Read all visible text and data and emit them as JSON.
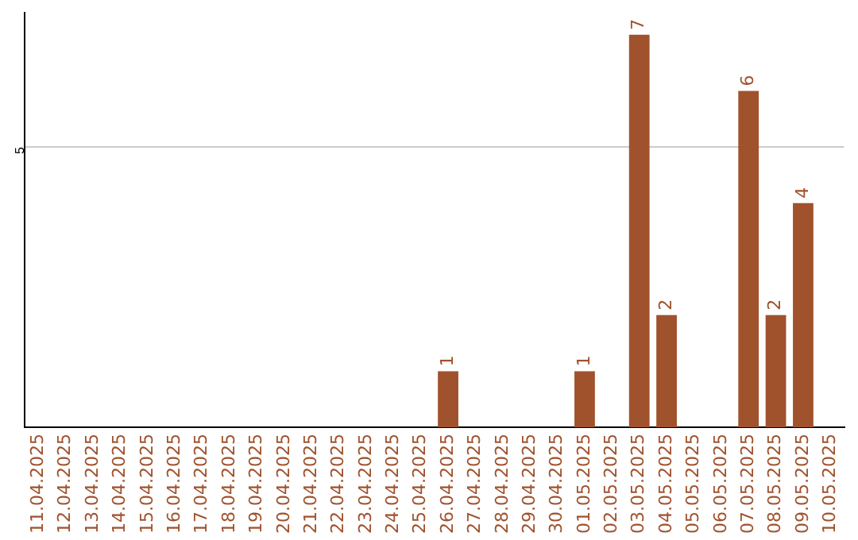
{
  "chart_data": {
    "type": "bar",
    "categories": [
      "11.04.2025",
      "12.04.2025",
      "13.04.2025",
      "14.04.2025",
      "15.04.2025",
      "16.04.2025",
      "17.04.2025",
      "18.04.2025",
      "19.04.2025",
      "20.04.2025",
      "21.04.2025",
      "22.04.2025",
      "23.04.2025",
      "24.04.2025",
      "25.04.2025",
      "26.04.2025",
      "27.04.2025",
      "28.04.2025",
      "29.04.2025",
      "30.04.2025",
      "01.05.2025",
      "02.05.2025",
      "03.05.2025",
      "04.05.2025",
      "05.05.2025",
      "06.05.2025",
      "07.05.2025",
      "08.05.2025",
      "09.05.2025",
      "10.05.2025"
    ],
    "values": [
      null,
      null,
      null,
      null,
      null,
      null,
      null,
      null,
      null,
      null,
      null,
      null,
      null,
      null,
      null,
      1,
      null,
      null,
      null,
      null,
      1,
      null,
      7,
      2,
      null,
      null,
      6,
      2,
      4,
      null
    ],
    "color": "#a0522d",
    "ylim": [
      0,
      7.4
    ],
    "yticks": [
      5
    ],
    "grid": "y",
    "data_labels": true
  }
}
